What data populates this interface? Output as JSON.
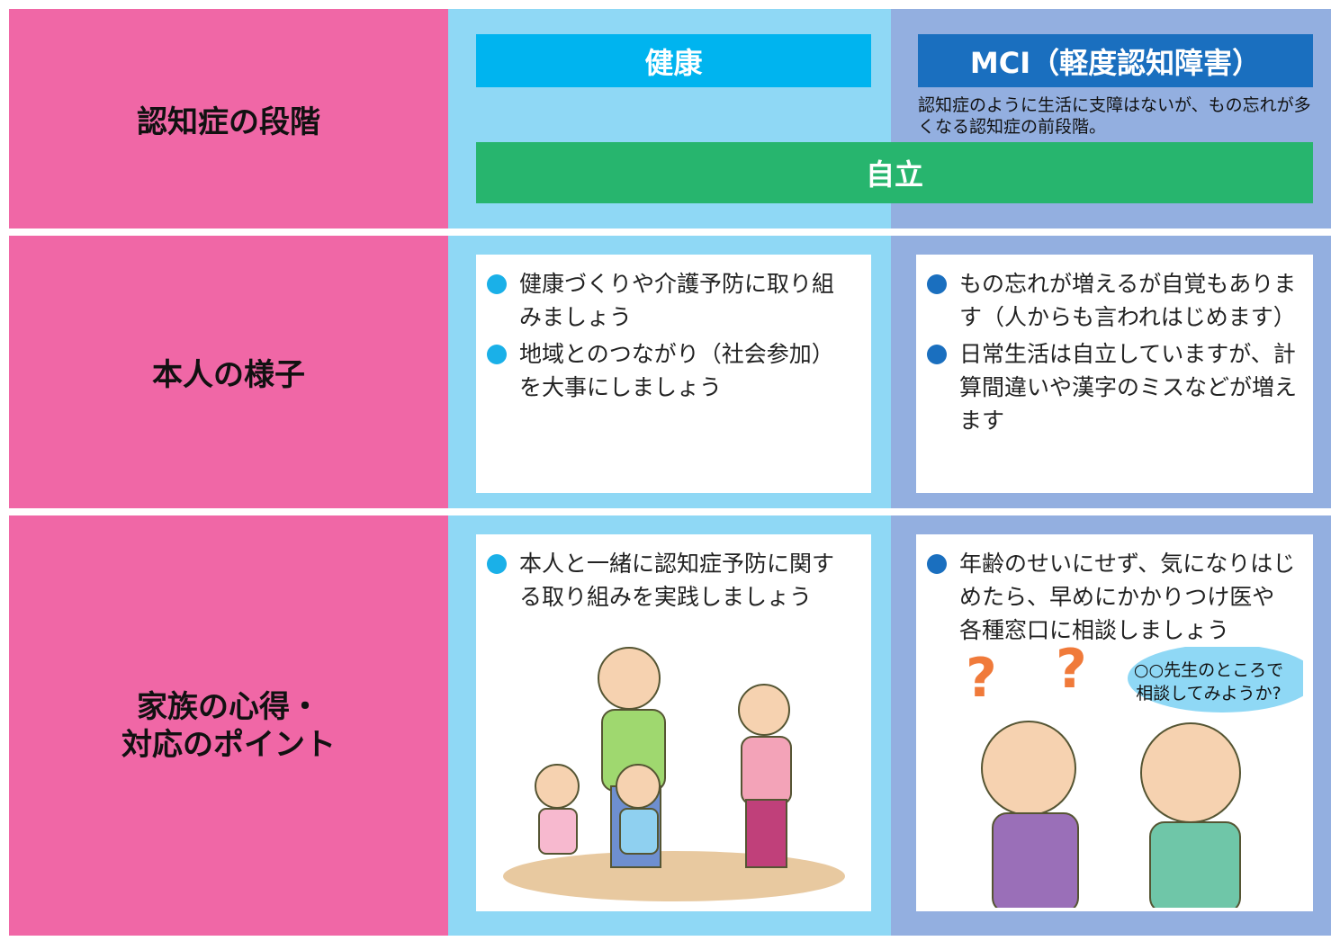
{
  "stage": {
    "label": "認知症の段階",
    "healthy": "健康",
    "mci": "MCI（軽度認知障害）",
    "mci_note": "認知症のように生活に支障はないが、もの忘れが多くなる認知症の前段階。",
    "independent": "自立"
  },
  "condition": {
    "label": "本人の様子",
    "healthy": [
      "健康づくりや介護予防に取り組みましょう",
      "地域とのつながり（社会参加）を大事にしましょう"
    ],
    "mci": [
      "もの忘れが増えるが自覚もあります（人からも言われはじめます）",
      "日常生活は自立していますが、計算間違いや漢字のミスなどが増えます"
    ]
  },
  "family": {
    "label": [
      "家族の心得・",
      "対応のポイント"
    ],
    "healthy": [
      "本人と一緒に認知症予防に関する取り組みを実践しましょう"
    ],
    "mci": [
      "年齢のせいにせず、気になりはじめたら、早めにかかりつけ医や各種窓口に相談しましょう"
    ],
    "speech": [
      "○○先生のところで",
      "相談してみようか?"
    ]
  }
}
